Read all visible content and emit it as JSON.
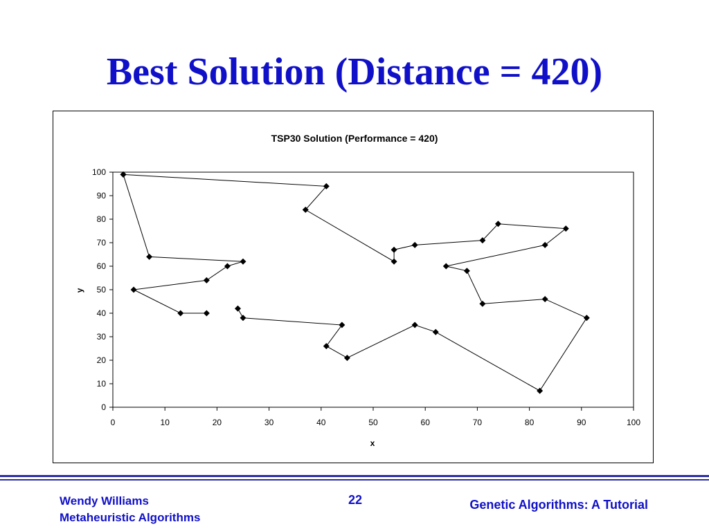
{
  "slide": {
    "title": "Best Solution (Distance = 420)",
    "footer_author": "Wendy Williams",
    "footer_course": "Metaheuristic Algorithms",
    "page_number": "22",
    "footer_topic": "Genetic Algorithms: A Tutorial",
    "title_color": "#1010c8",
    "rule_color": "#2a2aa8"
  },
  "chart_data": {
    "type": "line",
    "title": "TSP30 Solution (Performance = 420)",
    "xlabel": "x",
    "ylabel": "y",
    "xlim": [
      0,
      100
    ],
    "ylim": [
      0,
      100
    ],
    "xticks": [
      0,
      10,
      20,
      30,
      40,
      50,
      60,
      70,
      80,
      90,
      100
    ],
    "yticks": [
      0,
      10,
      20,
      30,
      40,
      50,
      60,
      70,
      80,
      90,
      100
    ],
    "grid": false,
    "legend": "none",
    "marker": "diamond",
    "series": [
      {
        "points": [
          [
            2,
            99
          ],
          [
            41,
            94
          ],
          [
            37,
            84
          ],
          [
            54,
            62
          ],
          [
            54,
            67
          ],
          [
            58,
            69
          ],
          [
            71,
            71
          ],
          [
            74,
            78
          ],
          [
            87,
            76
          ],
          [
            83,
            69
          ],
          [
            64,
            60
          ],
          [
            68,
            58
          ],
          [
            71,
            44
          ],
          [
            83,
            46
          ],
          [
            91,
            38
          ],
          [
            82,
            7
          ],
          [
            62,
            32
          ],
          [
            58,
            35
          ],
          [
            45,
            21
          ],
          [
            41,
            26
          ],
          [
            44,
            35
          ],
          [
            25,
            38
          ],
          [
            24,
            42
          ]
        ]
      },
      {
        "points": [
          [
            18,
            40
          ],
          [
            13,
            40
          ],
          [
            4,
            50
          ],
          [
            18,
            54
          ],
          [
            22,
            60
          ],
          [
            25,
            62
          ],
          [
            7,
            64
          ],
          [
            2,
            99
          ]
        ]
      }
    ]
  }
}
